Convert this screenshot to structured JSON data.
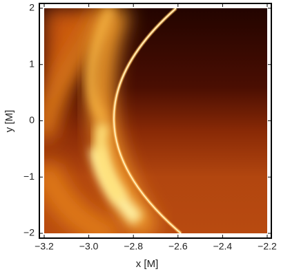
{
  "chart_data": {
    "type": "heatmap",
    "xlabel": "x [M]",
    "ylabel": "y [M]",
    "xlim": [
      -3.2,
      -2.2
    ],
    "ylim": [
      -2,
      2
    ],
    "xticks": [
      {
        "value": -3.2,
        "label": "−3.2"
      },
      {
        "value": -3.0,
        "label": "−3.0"
      },
      {
        "value": -2.8,
        "label": "−2.8"
      },
      {
        "value": -2.6,
        "label": "−2.6"
      },
      {
        "value": -2.4,
        "label": "−2.4"
      },
      {
        "value": -2.2,
        "label": "−2.2"
      }
    ],
    "yticks": [
      {
        "value": -2,
        "label": "−2"
      },
      {
        "value": -1,
        "label": "−1"
      },
      0,
      1,
      2
    ]
  }
}
